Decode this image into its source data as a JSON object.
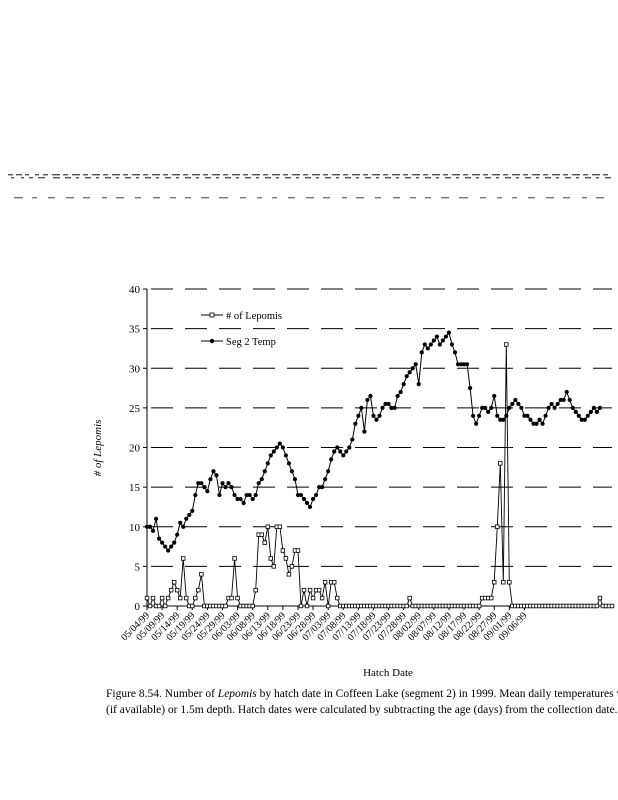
{
  "chart_data": {
    "type": "line",
    "xlabel": "Hatch Date",
    "ylabel": "# of Lepomis",
    "ylim": [
      0,
      40
    ],
    "yticks": [
      0,
      5,
      10,
      15,
      20,
      25,
      30,
      35,
      40
    ],
    "xtick_labels": [
      "05/04/99",
      "05/09/99",
      "05/14/99",
      "05/19/99",
      "05/24/99",
      "05/29/99",
      "06/03/99",
      "06/08/99",
      "06/13/99",
      "06/18/99",
      "06/23/99",
      "06/28/99",
      "07/03/99",
      "07/08/99",
      "07/13/99",
      "07/18/99",
      "07/23/99",
      "07/28/99",
      "08/02/99",
      "08/07/99",
      "08/12/99",
      "08/17/99",
      "08/22/99",
      "08/27/99",
      "09/01/99",
      "09/06/99"
    ],
    "legend_position": "top-left",
    "series": [
      {
        "name": "# of Lepomis",
        "marker": "open-square",
        "start_date": "05/04/99",
        "values": [
          1,
          0,
          1,
          0,
          0,
          1,
          0,
          1,
          2,
          3,
          2,
          1,
          6,
          1,
          0,
          0,
          1,
          2,
          4,
          0,
          0,
          0,
          0,
          0,
          0,
          0,
          0,
          1,
          1,
          6,
          1,
          0,
          0,
          0,
          0,
          0,
          2,
          9,
          9,
          8,
          10,
          6,
          5,
          10,
          10,
          7,
          6,
          4,
          5,
          7,
          7,
          0,
          2,
          0,
          2,
          1,
          2,
          2,
          1,
          3,
          0,
          3,
          3,
          1,
          0,
          0,
          0,
          0,
          0,
          0,
          0,
          0,
          0,
          0,
          0,
          0,
          0,
          0,
          0,
          0,
          0,
          0,
          0,
          0,
          0,
          0,
          0,
          1,
          0,
          0,
          0,
          0,
          0,
          0,
          0,
          0,
          0,
          0,
          0,
          0,
          0,
          0,
          0,
          0,
          0,
          0,
          0,
          0,
          0,
          0,
          0,
          1,
          1,
          1,
          1,
          3,
          10,
          18,
          3,
          33,
          3,
          0,
          0,
          0,
          0,
          0,
          0,
          0,
          0,
          0,
          0,
          0,
          0,
          0,
          0,
          0,
          0,
          0,
          0,
          0,
          0,
          0,
          0,
          0,
          0,
          0,
          0,
          0,
          0,
          0,
          1,
          0,
          0,
          0,
          0
        ]
      },
      {
        "name": "Seg 2 Temp",
        "marker": "filled-circle",
        "start_date": "05/04/99",
        "values": [
          10,
          10,
          9.5,
          11,
          8.5,
          8,
          7.5,
          7,
          7.5,
          8,
          9,
          10.5,
          10,
          11,
          11.5,
          12,
          14,
          15.5,
          15.5,
          15,
          14.5,
          16,
          17,
          16.5,
          14,
          15.5,
          15,
          15.5,
          15,
          14,
          13.5,
          13.5,
          13,
          14,
          14,
          13.5,
          14,
          15.5,
          16,
          17,
          18,
          19,
          19.5,
          20,
          20.5,
          20,
          19,
          18,
          17,
          16,
          14,
          14,
          13.5,
          13,
          12.5,
          13.5,
          14,
          15,
          15,
          16,
          17,
          18.5,
          19.5,
          20,
          19.5,
          19,
          19.5,
          20,
          21,
          23,
          24,
          25,
          22,
          26,
          26.5,
          24,
          23.5,
          24,
          25,
          25.5,
          25.5,
          25,
          25,
          26.5,
          27,
          28,
          29,
          29.5,
          30,
          30.5,
          28,
          32,
          33,
          32.5,
          33,
          33.5,
          34,
          33,
          33.5,
          34,
          34.5,
          33,
          32,
          30.5,
          30.5,
          30.5,
          30.5,
          27.5,
          24,
          23,
          24,
          25,
          25,
          24.5,
          25,
          26.5,
          24,
          23.5,
          23.5,
          24,
          25,
          25.5,
          26,
          25.5,
          25,
          24,
          24,
          23.5,
          23,
          23,
          23.5,
          23,
          24,
          25,
          25.5,
          25,
          25.5,
          26,
          26,
          27,
          26,
          25,
          24.5,
          24,
          23.5,
          23.5,
          24,
          24.5,
          25,
          24.5,
          25
        ]
      }
    ]
  },
  "caption": {
    "figure_label": "Figure 8.54.",
    "line1_before": " Number of ",
    "line1_italic": "Lepomis",
    "line1_after": " by hatch date in Coffeen Lake (segment 2) in 1999.  Mean daily temperatures wer",
    "line2": "(if available) or 1.5m depth.  Hatch dates were calculated by subtracting the age (days) from the collection date."
  }
}
